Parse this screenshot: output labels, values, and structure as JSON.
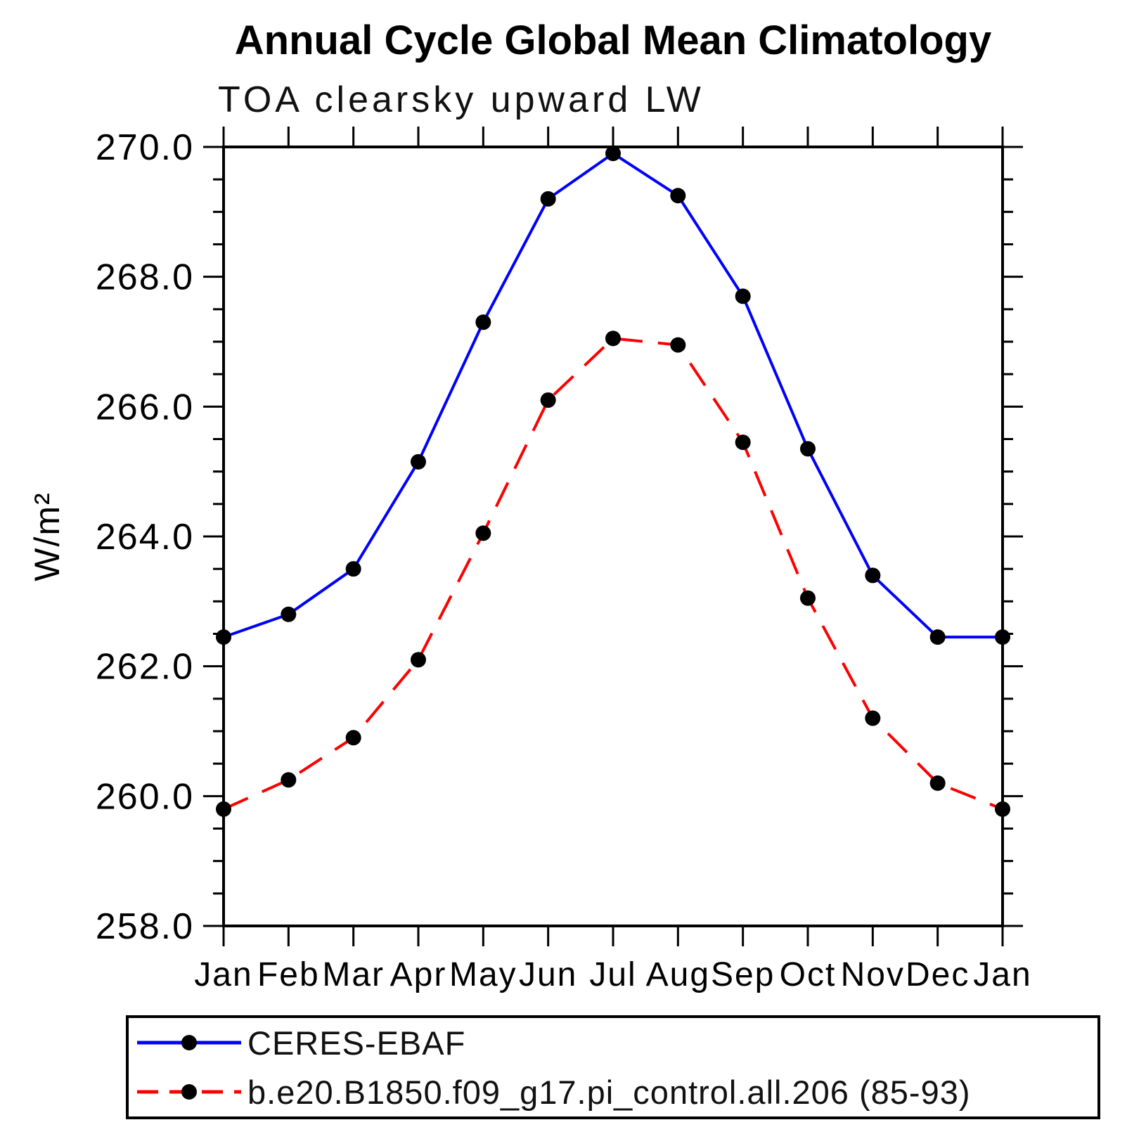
{
  "title": "Annual Cycle Global Mean Climatology",
  "subtitle": "TOA clearsky upward LW",
  "chart_data": {
    "type": "line",
    "categories": [
      "Jan",
      "Feb",
      "Mar",
      "Apr",
      "May",
      "Jun",
      "Jul",
      "Aug",
      "Sep",
      "Oct",
      "Nov",
      "Dec",
      "Jan"
    ],
    "series": [
      {
        "name": "CERES-EBAF",
        "color": "#0000ff",
        "line_style": "solid",
        "marker": "circle",
        "marker_color": "#000000",
        "values": [
          262.45,
          262.8,
          263.5,
          265.15,
          267.3,
          269.2,
          269.9,
          269.25,
          267.7,
          265.35,
          263.4,
          262.45,
          262.45
        ]
      },
      {
        "name": "b.e20.B1850.f09_g17.pi_control.all.206 (85-93)",
        "color": "#ff0000",
        "line_style": "dashed",
        "marker": "circle",
        "marker_color": "#000000",
        "values": [
          259.8,
          260.25,
          260.9,
          262.1,
          264.05,
          266.1,
          267.05,
          266.95,
          265.45,
          263.05,
          261.2,
          260.2,
          259.8
        ]
      }
    ],
    "xlabel": "",
    "ylabel": "W/m²",
    "ylim": [
      258.0,
      270.0
    ],
    "ytick_major_step": 2.0,
    "ytick_minor_step": 0.5,
    "ytick_labels": [
      "258.0",
      "260.0",
      "262.0",
      "264.0",
      "266.0",
      "268.0",
      "270.0"
    ],
    "grid": false,
    "legend_position": "bottom-left-box"
  }
}
